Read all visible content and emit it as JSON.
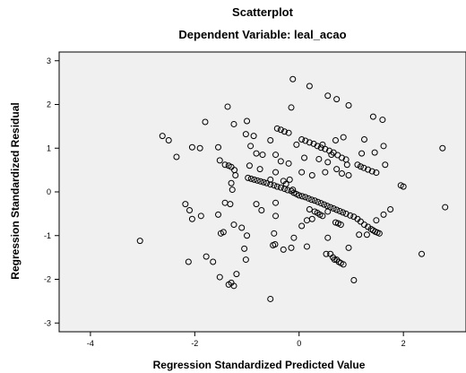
{
  "chart_data": {
    "type": "scatter",
    "title": "Scatterplot",
    "subtitle": "Dependent Variable: leal_acao",
    "xlabel": "Regression Standardized Predicted Value",
    "ylabel": "Regression Standardized Residual",
    "xlim": [
      -4.6,
      3.2
    ],
    "ylim": [
      -3.2,
      3.2
    ],
    "x_ticks": [
      -4,
      -2,
      0,
      2
    ],
    "y_ticks": [
      -3,
      -2,
      -1,
      0,
      1,
      2,
      3
    ],
    "grid": false,
    "plot_background": "#f0f0f0",
    "marker_color": "#000000",
    "marker": "open-circle",
    "points": [
      [
        -0.12,
        2.58
      ],
      [
        0.2,
        2.42
      ],
      [
        0.55,
        2.2
      ],
      [
        0.72,
        2.12
      ],
      [
        0.95,
        1.98
      ],
      [
        -0.15,
        1.93
      ],
      [
        -1.37,
        1.95
      ],
      [
        -1.8,
        1.6
      ],
      [
        -1.25,
        1.55
      ],
      [
        -1.9,
        1.0
      ],
      [
        -2.5,
        1.18
      ],
      [
        -2.62,
        1.28
      ],
      [
        -2.35,
        0.8
      ],
      [
        -2.05,
        1.02
      ],
      [
        -1.55,
        1.02
      ],
      [
        -1.0,
        1.62
      ],
      [
        -1.02,
        1.32
      ],
      [
        -0.87,
        1.28
      ],
      [
        -0.93,
        1.05
      ],
      [
        -0.55,
        1.18
      ],
      [
        -0.45,
        0.85
      ],
      [
        -0.05,
        1.08
      ],
      [
        1.42,
        1.72
      ],
      [
        1.6,
        1.65
      ],
      [
        -1.52,
        0.72
      ],
      [
        -1.42,
        0.62
      ],
      [
        -1.35,
        0.6
      ],
      [
        -1.3,
        0.57
      ],
      [
        -1.24,
        0.5
      ],
      [
        -1.22,
        0.38
      ],
      [
        -0.95,
        0.6
      ],
      [
        -1.3,
        0.2
      ],
      [
        -1.28,
        0.05
      ],
      [
        -1.42,
        -0.25
      ],
      [
        -1.32,
        -0.28
      ],
      [
        -1.55,
        -0.52
      ],
      [
        -1.25,
        -0.75
      ],
      [
        -1.5,
        -0.95
      ],
      [
        -1.45,
        -0.92
      ],
      [
        -1.1,
        -0.82
      ],
      [
        -1.0,
        -1.0
      ],
      [
        -1.05,
        -1.3
      ],
      [
        -1.02,
        -1.55
      ],
      [
        -1.2,
        -1.88
      ],
      [
        -1.3,
        -2.08
      ],
      [
        -1.35,
        -2.12
      ],
      [
        -1.25,
        -2.15
      ],
      [
        -1.52,
        -1.95
      ],
      [
        -1.65,
        -1.6
      ],
      [
        -1.78,
        -1.48
      ],
      [
        -2.12,
        -1.6
      ],
      [
        -1.88,
        -0.55
      ],
      [
        -2.1,
        -0.42
      ],
      [
        -2.05,
        -0.62
      ],
      [
        -2.18,
        -0.28
      ],
      [
        -3.05,
        -1.12
      ],
      [
        -0.55,
        -2.45
      ],
      [
        -0.45,
        -0.55
      ],
      [
        -0.48,
        -0.95
      ],
      [
        -0.5,
        -1.22
      ],
      [
        -0.46,
        -1.2
      ],
      [
        -0.3,
        -1.32
      ],
      [
        -0.15,
        -1.28
      ],
      [
        0.15,
        -1.25
      ],
      [
        0.05,
        -0.78
      ],
      [
        -0.1,
        -1.05
      ],
      [
        2.35,
        -1.42
      ],
      [
        2.75,
        1.0
      ],
      [
        2.8,
        -0.35
      ],
      [
        1.95,
        0.15
      ],
      [
        2.0,
        0.12
      ],
      [
        1.65,
        0.62
      ],
      [
        1.75,
        -0.4
      ],
      [
        1.62,
        1.05
      ],
      [
        1.45,
        0.9
      ],
      [
        1.25,
        1.2
      ],
      [
        1.2,
        0.88
      ],
      [
        0.85,
        1.25
      ],
      [
        0.7,
        1.18
      ],
      [
        0.45,
        1.08
      ],
      [
        0.62,
        0.85
      ],
      [
        0.55,
        0.68
      ],
      [
        0.38,
        0.75
      ],
      [
        0.92,
        0.62
      ],
      [
        0.95,
        0.38
      ],
      [
        0.82,
        0.42
      ],
      [
        0.72,
        0.52
      ],
      [
        0.5,
        0.45
      ],
      [
        0.25,
        0.38
      ],
      [
        0.1,
        0.78
      ],
      [
        -0.2,
        0.65
      ],
      [
        -0.35,
        0.7
      ],
      [
        -0.45,
        0.45
      ],
      [
        -0.55,
        0.28
      ],
      [
        -0.75,
        0.52
      ],
      [
        -0.82,
        0.88
      ],
      [
        -0.82,
        -0.28
      ],
      [
        -0.72,
        -0.42
      ],
      [
        -0.45,
        -0.25
      ],
      [
        0.55,
        -1.05
      ],
      [
        0.52,
        -1.42
      ],
      [
        0.68,
        -1.55
      ],
      [
        1.05,
        -2.02
      ],
      [
        0.95,
        -1.28
      ],
      [
        1.15,
        -0.98
      ],
      [
        1.3,
        -0.98
      ],
      [
        1.48,
        -0.65
      ],
      [
        1.62,
        -0.52
      ],
      [
        0.25,
        -0.62
      ],
      [
        0.55,
        -0.45
      ],
      [
        -0.7,
        0.85
      ],
      [
        0.05,
        0.45
      ],
      [
        -0.42,
        1.45
      ],
      [
        -0.35,
        1.42
      ],
      [
        -0.28,
        1.38
      ],
      [
        -0.2,
        1.35
      ],
      [
        0.05,
        1.2
      ],
      [
        0.12,
        1.17
      ],
      [
        0.2,
        1.13
      ],
      [
        0.28,
        1.1
      ],
      [
        0.35,
        1.05
      ],
      [
        0.42,
        1.01
      ],
      [
        0.5,
        0.98
      ],
      [
        0.58,
        0.94
      ],
      [
        0.66,
        0.9
      ],
      [
        0.74,
        0.84
      ],
      [
        0.82,
        0.78
      ],
      [
        0.9,
        0.74
      ],
      [
        1.12,
        0.62
      ],
      [
        1.18,
        0.58
      ],
      [
        1.24,
        0.55
      ],
      [
        1.32,
        0.51
      ],
      [
        1.4,
        0.47
      ],
      [
        1.48,
        0.44
      ],
      [
        -0.98,
        0.32
      ],
      [
        -0.92,
        0.3
      ],
      [
        -0.86,
        0.28
      ],
      [
        -0.8,
        0.26
      ],
      [
        -0.74,
        0.24
      ],
      [
        -0.68,
        0.22
      ],
      [
        -0.62,
        0.2
      ],
      [
        -0.55,
        0.17
      ],
      [
        -0.48,
        0.15
      ],
      [
        -0.42,
        0.12
      ],
      [
        -0.35,
        0.1
      ],
      [
        -0.28,
        0.07
      ],
      [
        -0.22,
        0.04
      ],
      [
        -0.15,
        0.02
      ],
      [
        -0.1,
        -0.02
      ],
      [
        -0.05,
        -0.05
      ],
      [
        0.0,
        -0.08
      ],
      [
        0.06,
        -0.1
      ],
      [
        0.12,
        -0.12
      ],
      [
        0.18,
        -0.15
      ],
      [
        0.24,
        -0.18
      ],
      [
        0.3,
        -0.2
      ],
      [
        0.36,
        -0.23
      ],
      [
        0.42,
        -0.26
      ],
      [
        0.48,
        -0.29
      ],
      [
        0.54,
        -0.32
      ],
      [
        0.6,
        -0.35
      ],
      [
        0.66,
        -0.38
      ],
      [
        0.72,
        -0.41
      ],
      [
        0.78,
        -0.44
      ],
      [
        0.84,
        -0.47
      ],
      [
        0.9,
        -0.5
      ],
      [
        0.98,
        -0.54
      ],
      [
        1.05,
        -0.57
      ],
      [
        1.12,
        -0.62
      ],
      [
        1.18,
        -0.68
      ],
      [
        1.25,
        -0.75
      ],
      [
        1.32,
        -0.8
      ],
      [
        1.38,
        -0.85
      ],
      [
        1.42,
        -0.88
      ],
      [
        1.46,
        -0.91
      ],
      [
        1.5,
        -0.93
      ],
      [
        1.54,
        -0.95
      ],
      [
        -0.3,
        0.25
      ],
      [
        -0.25,
        0.18
      ],
      [
        -0.18,
        0.28
      ],
      [
        -0.12,
        0.05
      ],
      [
        0.3,
        -0.45
      ],
      [
        0.35,
        -0.48
      ],
      [
        0.4,
        -0.52
      ],
      [
        0.45,
        -0.55
      ],
      [
        0.7,
        -0.7
      ],
      [
        0.75,
        -0.72
      ],
      [
        0.8,
        -0.75
      ],
      [
        0.6,
        -1.42
      ],
      [
        0.65,
        -1.5
      ],
      [
        0.72,
        -1.55
      ],
      [
        0.76,
        -1.6
      ],
      [
        0.8,
        -1.63
      ],
      [
        0.85,
        -1.66
      ],
      [
        0.15,
        -0.65
      ],
      [
        0.2,
        -0.4
      ]
    ]
  }
}
